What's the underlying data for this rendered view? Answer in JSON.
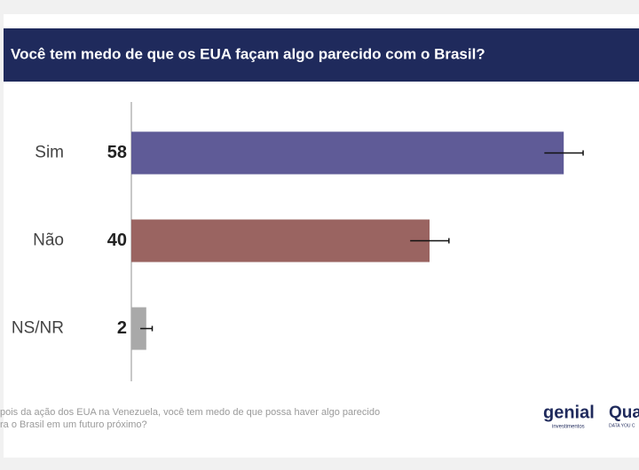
{
  "chart_data": {
    "type": "bar",
    "orientation": "horizontal",
    "title": "Você tem medo de que os EUA façam algo parecido com o Brasil?",
    "categories": [
      "Sim",
      "Não",
      "NS/NR"
    ],
    "values": [
      58,
      40,
      2
    ],
    "errors": [
      2.6,
      2.6,
      0.8
    ],
    "colors": [
      "#5f5b97",
      "#9a6461",
      "#a9a9a9"
    ],
    "xlim": [
      0,
      65
    ],
    "note": [
      "pois da ação dos EUA na Venezuela, você tem medo de que possa haver algo parecido",
      "ra o Brasil em um futuro próximo?"
    ]
  },
  "logos": {
    "genial": "genial",
    "genial_sub": "investimentos",
    "quaest": "Qua",
    "quaest_sub": "DATA YOU C"
  }
}
